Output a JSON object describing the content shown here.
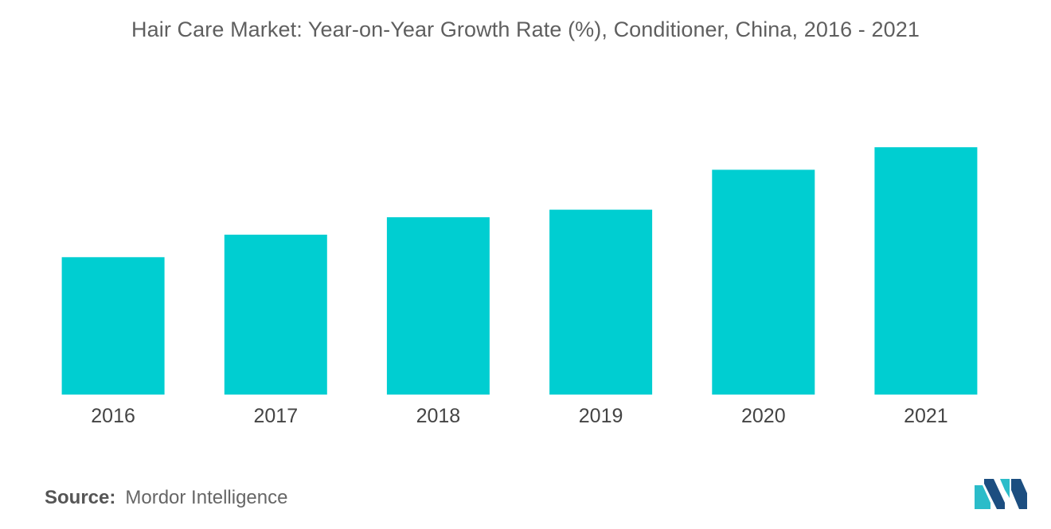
{
  "title": "Hair Care Market:  Year-on-Year Growth Rate (%), Conditioner, China, 2016 - 2021",
  "source": {
    "label": "Source:",
    "value": "Mordor Intelligence"
  },
  "colors": {
    "bar": "#00CED1",
    "logo_dark": "#1c4e80",
    "logo_light": "#2bbcc9"
  },
  "logo_icon": "mordor-intelligence-logo-icon",
  "chart_data": {
    "type": "bar",
    "categories": [
      "2016",
      "2017",
      "2018",
      "2019",
      "2020",
      "2021"
    ],
    "values": [
      5.5,
      6.4,
      7.1,
      7.4,
      9.0,
      9.9
    ],
    "title": "Hair Care Market:  Year-on-Year Growth Rate (%), Conditioner, China, 2016 - 2021",
    "xlabel": "",
    "ylabel": "",
    "ylim": [
      0,
      10
    ],
    "grid": false,
    "legend": "none"
  }
}
